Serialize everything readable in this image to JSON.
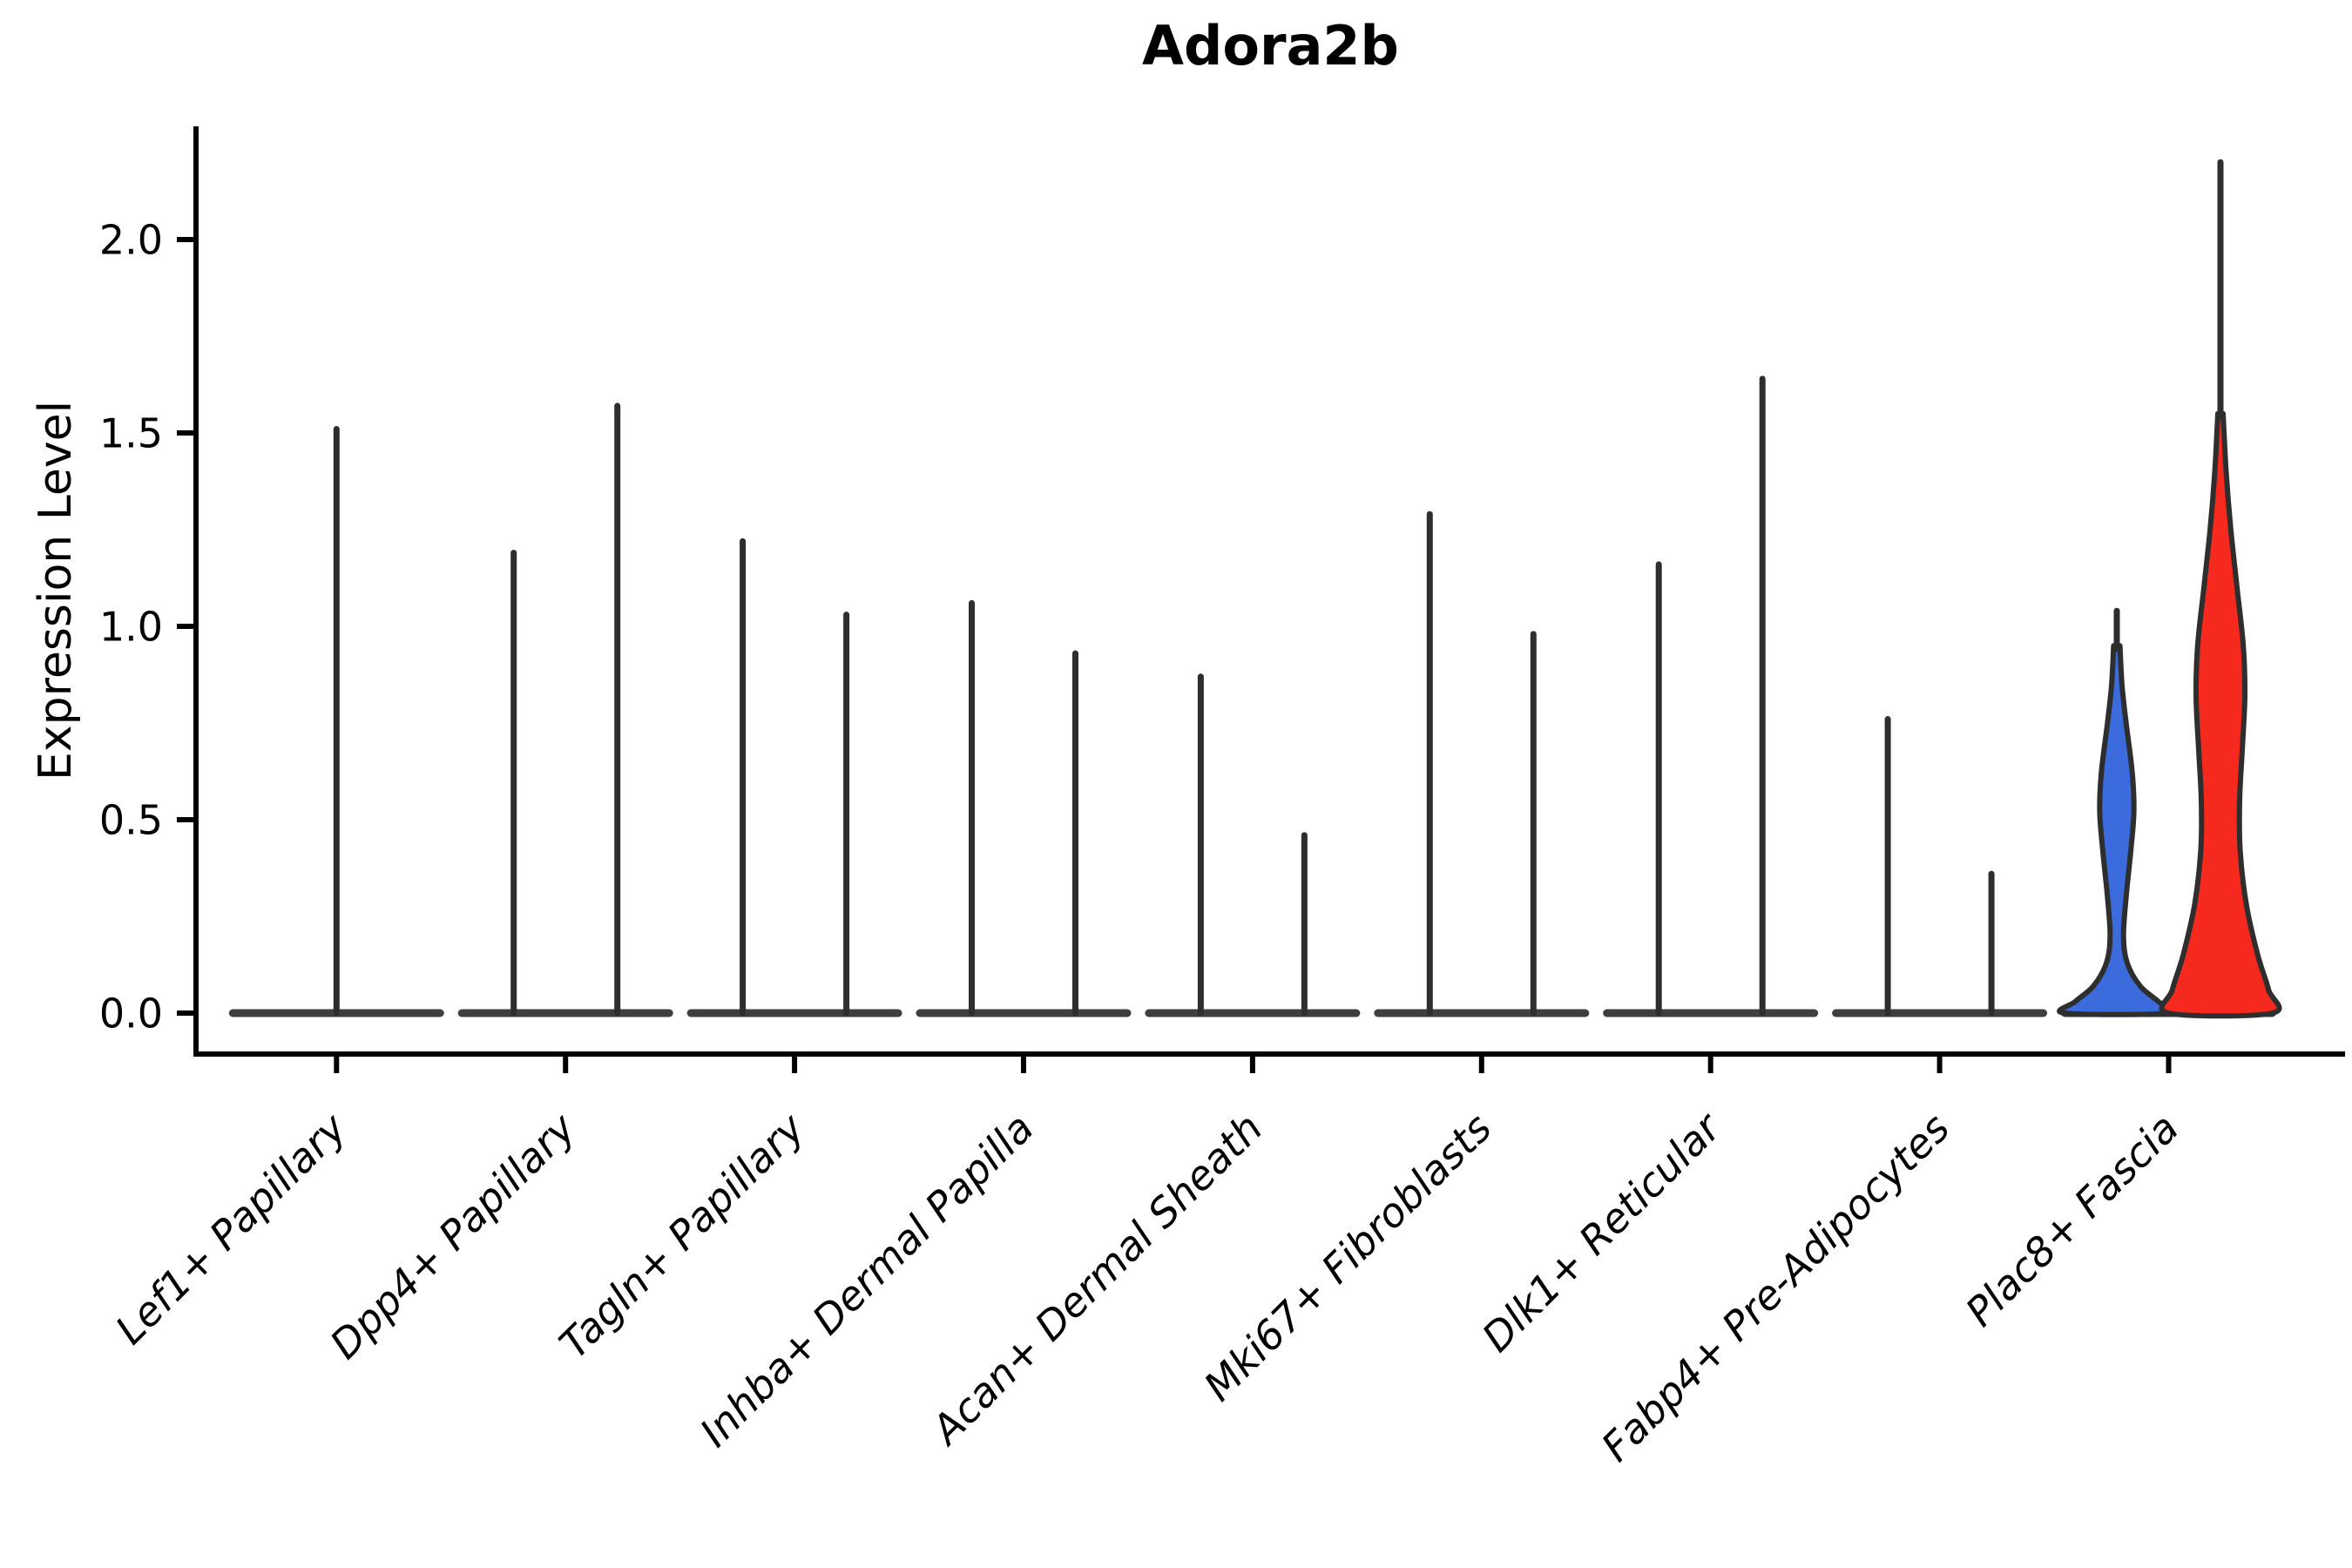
{
  "title": "Adora2b",
  "ylabel": "Expression Level",
  "colors": {
    "group_blue": "#3B6BDC",
    "group_red": "#F5291D",
    "violin_stroke": "#2E2E2E",
    "base_line": "#3F3F3F",
    "axis": "#000000"
  },
  "chart_data": {
    "type": "violin",
    "title": "Adora2b",
    "xlabel": "",
    "ylabel": "Expression Level",
    "ylim": [
      -0.11,
      2.29
    ],
    "yticks": [
      0.0,
      0.5,
      1.0,
      1.5,
      2.0
    ],
    "ytick_labels": [
      "0.0",
      "0.5",
      "1.0",
      "1.5",
      "2.0"
    ],
    "grid": false,
    "legend_position": "none",
    "x_tick_label_style": "italic, rotated 45deg, anchored right",
    "categories": [
      "Lef1+ Papillary",
      "Dpp4+ Papillary",
      "Tagln+ Papillary",
      "Inhba+ Dermal Papilla",
      "Acan+ Dermal Sheath",
      "Mki67+ Fibroblasts",
      "Dlk1+ Reticular",
      "Fabp4+ Pre-Adipocytes",
      "Plac8+ Fascia"
    ],
    "series": [
      {
        "category": "Lef1+ Papillary",
        "violins": [
          {
            "position": "center",
            "max": 1.51,
            "fill": "none"
          }
        ]
      },
      {
        "category": "Dpp4+ Papillary",
        "violins": [
          {
            "position": "left",
            "max": 1.19,
            "fill": "none"
          },
          {
            "position": "right",
            "max": 1.57,
            "fill": "none"
          }
        ]
      },
      {
        "category": "Tagln+ Papillary",
        "violins": [
          {
            "position": "left",
            "max": 1.22,
            "fill": "none"
          },
          {
            "position": "right",
            "max": 1.03,
            "fill": "none"
          }
        ]
      },
      {
        "category": "Inhba+ Dermal Papilla",
        "violins": [
          {
            "position": "left",
            "max": 1.06,
            "fill": "none"
          },
          {
            "position": "right",
            "max": 0.93,
            "fill": "none"
          }
        ]
      },
      {
        "category": "Acan+ Dermal Sheath",
        "violins": [
          {
            "position": "left",
            "max": 0.87,
            "fill": "none"
          },
          {
            "position": "right",
            "max": 0.46,
            "fill": "none"
          }
        ]
      },
      {
        "category": "Mki67+ Fibroblasts",
        "violins": [
          {
            "position": "left",
            "max": 1.29,
            "fill": "none"
          },
          {
            "position": "right",
            "max": 0.98,
            "fill": "none"
          }
        ]
      },
      {
        "category": "Dlk1+ Reticular",
        "violins": [
          {
            "position": "left",
            "max": 1.16,
            "fill": "none"
          },
          {
            "position": "right",
            "max": 1.64,
            "fill": "none"
          }
        ]
      },
      {
        "category": "Fabp4+ Pre-Adipocytes",
        "violins": [
          {
            "position": "left",
            "max": 0.76,
            "fill": "none"
          },
          {
            "position": "right",
            "max": 0.36,
            "fill": "none"
          }
        ]
      },
      {
        "category": "Plac8+ Fascia",
        "violins": [
          {
            "position": "left",
            "max": 1.04,
            "fill": "group_blue",
            "body_top": 0.95,
            "profile": [
              [
                0.95,
                0.06
              ],
              [
                0.85,
                0.1
              ],
              [
                0.75,
                0.18
              ],
              [
                0.62,
                0.3
              ],
              [
                0.52,
                0.33
              ],
              [
                0.42,
                0.27
              ],
              [
                0.3,
                0.18
              ],
              [
                0.2,
                0.13
              ],
              [
                0.13,
                0.2
              ],
              [
                0.07,
                0.45
              ],
              [
                0.03,
                0.8
              ],
              [
                0.0,
                1.0
              ]
            ]
          },
          {
            "position": "right",
            "max": 2.2,
            "fill": "group_red",
            "body_top": 1.55,
            "profile": [
              [
                1.55,
                0.05
              ],
              [
                1.4,
                0.11
              ],
              [
                1.25,
                0.2
              ],
              [
                1.1,
                0.32
              ],
              [
                0.95,
                0.44
              ],
              [
                0.82,
                0.47
              ],
              [
                0.68,
                0.42
              ],
              [
                0.55,
                0.37
              ],
              [
                0.42,
                0.38
              ],
              [
                0.28,
                0.5
              ],
              [
                0.15,
                0.72
              ],
              [
                0.06,
                0.93
              ],
              [
                0.0,
                1.0
              ]
            ]
          }
        ]
      }
    ]
  }
}
